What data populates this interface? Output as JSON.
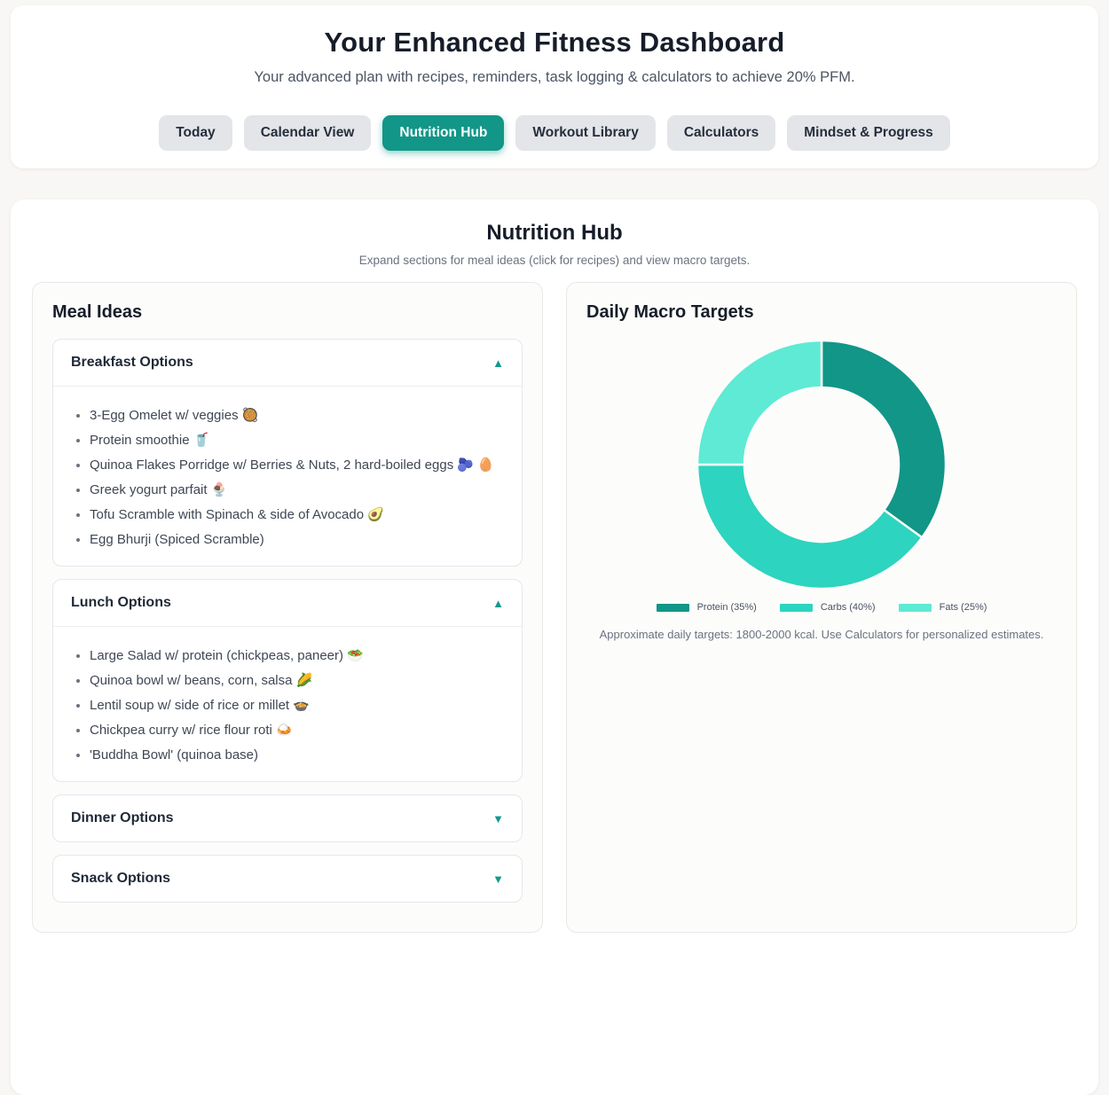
{
  "header": {
    "title": "Your Enhanced Fitness Dashboard",
    "subtitle": "Your advanced plan with recipes, reminders, task logging & calculators to achieve 20% PFM."
  },
  "tabs": [
    {
      "label": "Today",
      "active": false
    },
    {
      "label": "Calendar View",
      "active": false
    },
    {
      "label": "Nutrition Hub",
      "active": true
    },
    {
      "label": "Workout Library",
      "active": false
    },
    {
      "label": "Calculators",
      "active": false
    },
    {
      "label": "Mindset & Progress",
      "active": false
    }
  ],
  "nutrition_hub": {
    "title": "Nutrition Hub",
    "subtitle": "Expand sections for meal ideas (click for recipes) and view macro targets.",
    "meal_ideas": {
      "title": "Meal Ideas",
      "sections": [
        {
          "label": "Breakfast Options",
          "expanded": true,
          "items": [
            "3-Egg Omelet w/ veggies 🥘",
            "Protein smoothie 🥤",
            "Quinoa Flakes Porridge w/ Berries & Nuts, 2 hard-boiled eggs 🫐 🥚",
            "Greek yogurt parfait 🍨",
            "Tofu Scramble with Spinach & side of Avocado 🥑",
            "Egg Bhurji (Spiced Scramble)"
          ]
        },
        {
          "label": "Lunch Options",
          "expanded": true,
          "items": [
            "Large Salad w/ protein (chickpeas, paneer) 🥗",
            "Quinoa bowl w/ beans, corn, salsa 🌽",
            "Lentil soup w/ side of rice or millet 🍲",
            "Chickpea curry w/ rice flour roti 🍛",
            "'Buddha Bowl' (quinoa base)"
          ]
        },
        {
          "label": "Dinner Options",
          "expanded": false,
          "items": []
        },
        {
          "label": "Snack Options",
          "expanded": false,
          "items": []
        }
      ]
    },
    "macro_targets": {
      "title": "Daily Macro Targets",
      "caption": "Approximate daily targets: 1800-2000 kcal. Use Calculators for personalized estimates."
    }
  },
  "chart_data": {
    "type": "pie",
    "donut": true,
    "labels": [
      "Protein (35%)",
      "Carbs (40%)",
      "Fats (25%)"
    ],
    "values": [
      35,
      40,
      25
    ],
    "colors": [
      "#119687",
      "#2dd4bf",
      "#5eead4"
    ],
    "legend_position": "bottom",
    "start_angle_deg": 0,
    "direction": "clockwise"
  },
  "icons": {
    "expanded_indicator": "▲",
    "collapsed_indicator": "▼"
  },
  "colors": {
    "accent": "#119687",
    "page_background": "#f8f7f5"
  }
}
